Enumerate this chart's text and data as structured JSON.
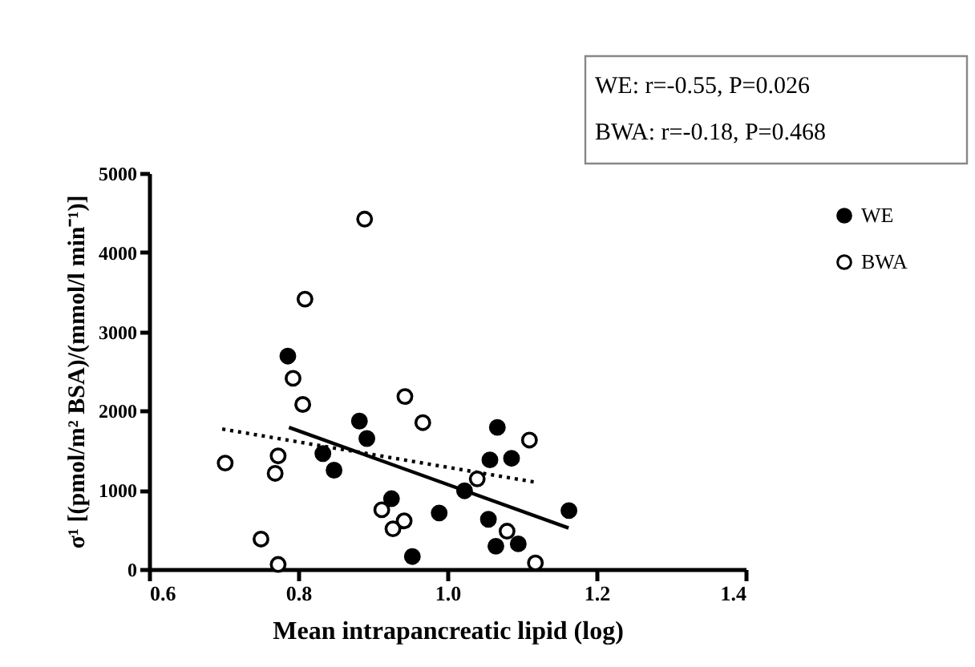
{
  "chart_data": {
    "type": "scatter",
    "xlabel": "Mean intrapancreatic lipid (log)",
    "ylabel": "σ¹ [(pmol/m² BSA)/(mmol/l min⁻¹)]",
    "annotations": [
      "WE: r=-0.55, P=0.026",
      "BWA: r=-0.18, P=0.468"
    ],
    "xlim": [
      0.6,
      1.4
    ],
    "xticks": [
      0.6,
      0.8,
      {
        "value": 1.0,
        "label": "1.0"
      },
      1.2,
      1.4
    ],
    "ylim": [
      0,
      5000
    ],
    "yticks": [
      0,
      1000,
      2000,
      3000,
      4000,
      5000
    ],
    "grid": false,
    "legend": "right",
    "marker": "circle",
    "series": [
      {
        "name": "WE",
        "color": "#000000",
        "x": [
          0.786,
          0.833,
          0.848,
          0.882,
          0.892,
          0.925,
          0.953,
          0.989,
          1.023,
          1.055,
          1.057,
          1.067,
          1.086,
          1.065,
          1.095,
          1.163
        ],
        "values": [
          2690,
          1460,
          1250,
          1870,
          1650,
          890,
          160,
          710,
          990,
          630,
          1380,
          1790,
          1400,
          290,
          320,
          740
        ]
      },
      {
        "name": "BWA",
        "color": "#ffffff",
        "x": [
          0.702,
          0.75,
          0.773,
          0.769,
          0.773,
          0.793,
          0.806,
          0.809,
          0.889,
          0.943,
          0.967,
          0.912,
          0.927,
          0.942,
          1.04,
          1.08,
          1.11,
          1.118
        ],
        "values": [
          1340,
          380,
          60,
          1210,
          1430,
          2410,
          2080,
          3410,
          4420,
          2180,
          1850,
          750,
          510,
          610,
          1140,
          480,
          1630,
          80
        ]
      },
      {
        "type": "line",
        "marker": "none",
        "color": "#000000",
        "line_style": "solid",
        "x": [
          0.7875,
          1.1625
        ],
        "values": [
          1790,
          520
        ]
      },
      {
        "type": "line",
        "marker": "none",
        "color": "#000000",
        "line_style": "dotted",
        "x": [
          0.698,
          1.117
        ],
        "values": [
          1770,
          1100
        ]
      }
    ]
  }
}
